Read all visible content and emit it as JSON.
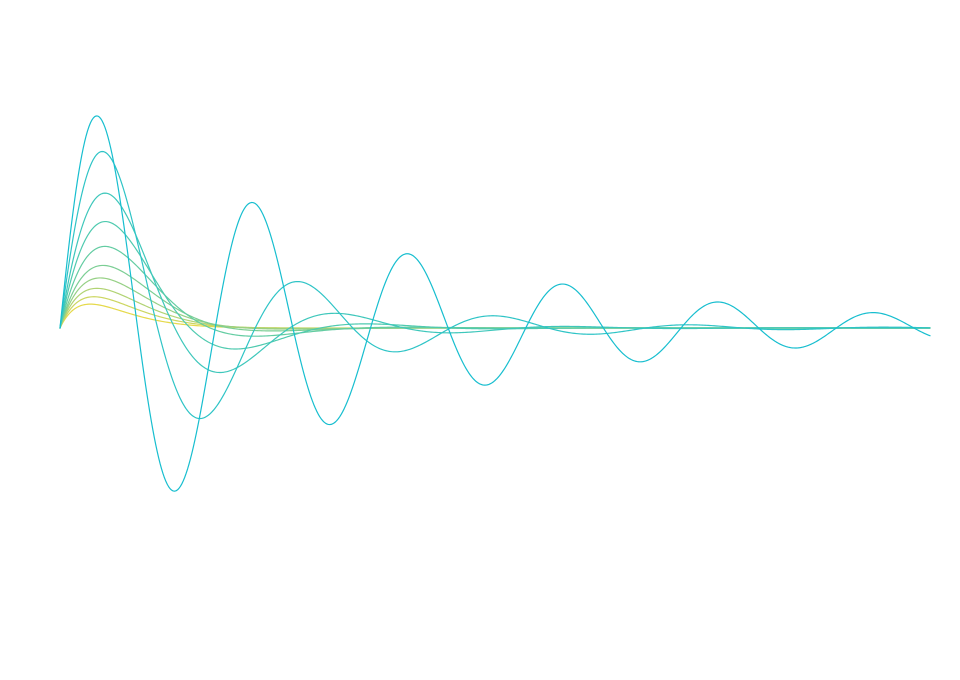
{
  "chart_data": {
    "type": "line",
    "title": "",
    "xlabel": "",
    "ylabel": "",
    "axes_visible": false,
    "grid": false,
    "legend": "none",
    "xlim": [
      0,
      7
    ],
    "ylim": [
      -1.2,
      1.2
    ],
    "x_samples": 600,
    "series": [
      {
        "color": "#17becf",
        "formula": "damped-sine",
        "omega": 5.03,
        "decay": 0.42,
        "amplitude": 1.2
      },
      {
        "color": "#2ec4c6",
        "formula": "damped-sine",
        "omega": 4.0,
        "decay": 0.85,
        "amplitude": 1.2
      },
      {
        "color": "#3ec7bb",
        "formula": "damped-sine",
        "omega": 3.4,
        "decay": 1.2,
        "amplitude": 1.1
      },
      {
        "color": "#4fcaaf",
        "formula": "damped-sine",
        "omega": 3.0,
        "decay": 1.55,
        "amplitude": 1.05
      },
      {
        "color": "#63cca2",
        "formula": "damped-sine",
        "omega": 2.6,
        "decay": 1.9,
        "amplitude": 1.0
      },
      {
        "color": "#7bce94",
        "formula": "damped-sine",
        "omega": 2.3,
        "decay": 2.25,
        "amplitude": 0.95
      },
      {
        "color": "#96d085",
        "formula": "damped-sine",
        "omega": 2.1,
        "decay": 2.6,
        "amplitude": 0.92
      },
      {
        "color": "#b1d373",
        "formula": "damped-sine",
        "omega": 1.9,
        "decay": 3.0,
        "amplitude": 0.9
      },
      {
        "color": "#ccd660",
        "formula": "damped-sine",
        "omega": 1.7,
        "decay": 3.4,
        "amplitude": 0.88
      },
      {
        "color": "#e5d94a",
        "formula": "damped-sine",
        "omega": 1.5,
        "decay": 3.9,
        "amplitude": 0.86
      }
    ]
  }
}
